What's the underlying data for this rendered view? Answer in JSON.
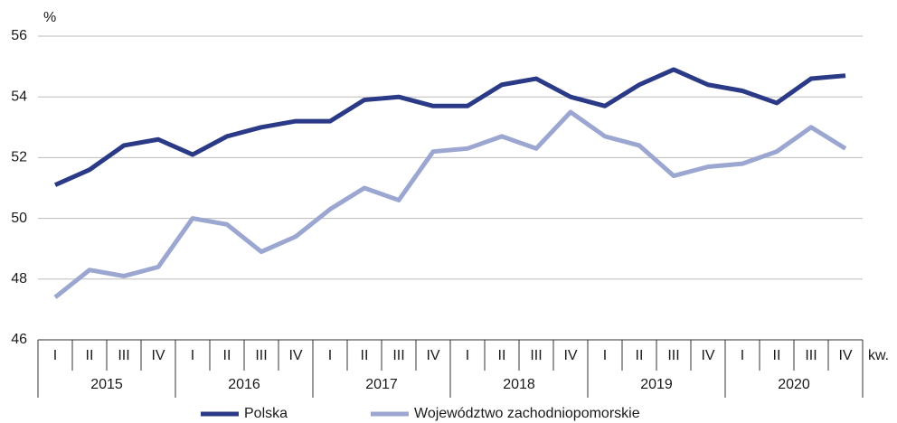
{
  "chart_data": {
    "type": "line",
    "y_label": "%",
    "x_label": "kw.",
    "categories": [
      "I",
      "II",
      "III",
      "IV",
      "I",
      "II",
      "III",
      "IV",
      "I",
      "II",
      "III",
      "IV",
      "I",
      "II",
      "III",
      "IV",
      "I",
      "II",
      "III",
      "IV",
      "I",
      "II",
      "III",
      "IV"
    ],
    "years": [
      "2015",
      "2016",
      "2017",
      "2018",
      "2019",
      "2020"
    ],
    "series": [
      {
        "name": "Polska",
        "color": "#2b3a87",
        "values": [
          51.1,
          51.6,
          52.4,
          52.6,
          52.1,
          52.7,
          53.0,
          53.2,
          53.2,
          53.9,
          54.0,
          53.7,
          53.7,
          54.4,
          54.6,
          54.0,
          53.7,
          54.4,
          54.9,
          54.4,
          54.2,
          53.8,
          54.6,
          54.7
        ]
      },
      {
        "name": "Województwo zachodniopomorskie",
        "color": "#9ba7d0",
        "values": [
          47.4,
          48.3,
          48.1,
          48.4,
          50.0,
          49.8,
          48.9,
          49.4,
          50.3,
          51.0,
          50.6,
          52.2,
          52.3,
          52.7,
          52.3,
          53.5,
          52.7,
          52.4,
          51.4,
          51.7,
          51.8,
          52.2,
          53.0,
          52.3
        ]
      }
    ],
    "ylim": [
      46,
      56
    ],
    "yticks": [
      46,
      48,
      50,
      52,
      54,
      56
    ],
    "grid": true,
    "legend": "bottom"
  }
}
